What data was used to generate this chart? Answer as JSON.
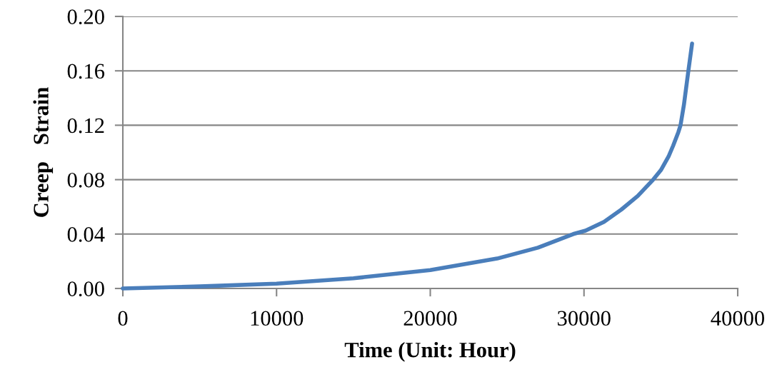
{
  "chart_data": {
    "type": "line",
    "xlabel": "Time (Unit: Hour)",
    "ylabel": "Creep   Strain",
    "x": [
      0,
      5000,
      10000,
      15000,
      20000,
      24350,
      27000,
      29300,
      30100,
      31300,
      32430,
      33500,
      34500,
      35000,
      35500,
      35800,
      36140,
      36280,
      36500,
      36790,
      37030
    ],
    "series": [
      {
        "color": "#4a7ebb",
        "values": [
          0,
          0.0015,
          0.0035,
          0.0075,
          0.0135,
          0.022,
          0.03,
          0.04,
          0.0425,
          0.049,
          0.058,
          0.068,
          0.08,
          0.087,
          0.097,
          0.105,
          0.115,
          0.12,
          0.135,
          0.16,
          0.18
        ]
      }
    ],
    "xlim": [
      0,
      40000
    ],
    "xticks": [
      0,
      10000,
      20000,
      30000,
      40000
    ],
    "ylim": [
      0,
      0.2
    ],
    "yticks": [
      {
        "value": 0,
        "label": "0.00"
      },
      {
        "value": 0.04,
        "label": "0.04"
      },
      {
        "value": 0.08,
        "label": "0.08"
      },
      {
        "value": 0.12,
        "label": "0.12"
      },
      {
        "value": 0.16,
        "label": "0.16"
      },
      {
        "value": 0.2,
        "label": "0.20"
      }
    ],
    "grid": "y",
    "marker": "none",
    "line_style": "solid"
  }
}
